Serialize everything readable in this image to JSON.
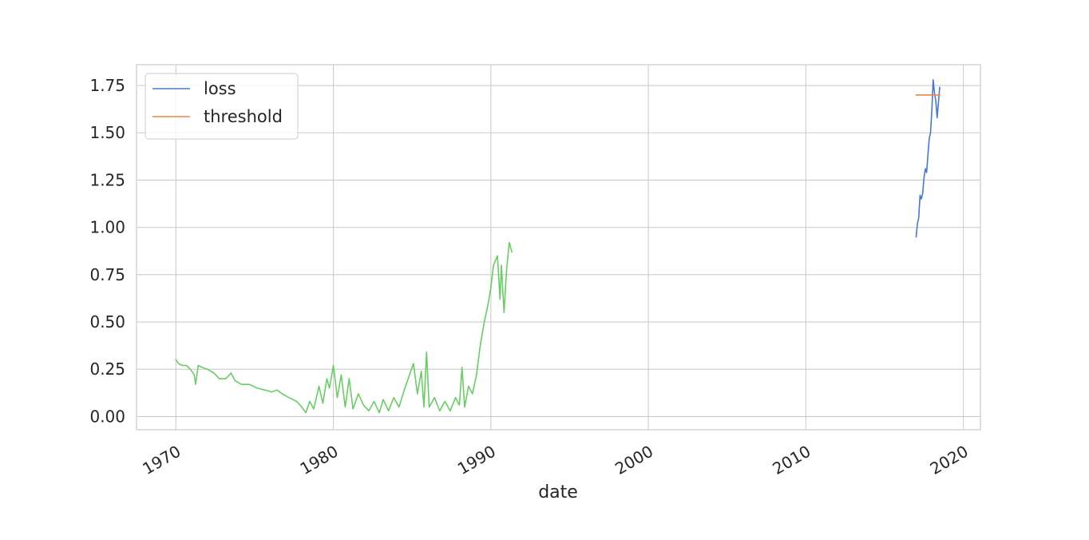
{
  "chart_data": {
    "type": "line",
    "title": "",
    "xlabel": "date",
    "ylabel": "",
    "x_axis_type": "date",
    "xlim": [
      "1967-07-01",
      "2021-02-01"
    ],
    "ylim": [
      -0.07,
      1.86
    ],
    "x_ticks": [
      "1970",
      "1980",
      "1990",
      "2000",
      "2010",
      "2020"
    ],
    "y_ticks": [
      "0.00",
      "0.25",
      "0.50",
      "0.75",
      "1.00",
      "1.25",
      "1.50",
      "1.75"
    ],
    "grid": true,
    "legend": {
      "position": "top-left",
      "entries": [
        "loss",
        "threshold"
      ]
    },
    "series": [
      {
        "name": "loss",
        "color": "#4878d0",
        "points": [
          [
            "2017-01",
            0.95
          ],
          [
            "2017-02",
            1.02
          ],
          [
            "2017-03",
            1.05
          ],
          [
            "2017-04",
            1.17
          ],
          [
            "2017-05",
            1.15
          ],
          [
            "2017-06",
            1.18
          ],
          [
            "2017-07",
            1.26
          ],
          [
            "2017-08",
            1.31
          ],
          [
            "2017-09",
            1.29
          ],
          [
            "2017-10",
            1.38
          ],
          [
            "2017-11",
            1.47
          ],
          [
            "2017-12",
            1.5
          ],
          [
            "2018-01",
            1.62
          ],
          [
            "2018-02",
            1.78
          ],
          [
            "2018-03",
            1.71
          ],
          [
            "2018-04",
            1.67
          ],
          [
            "2018-05",
            1.58
          ],
          [
            "2018-06",
            1.66
          ],
          [
            "2018-07",
            1.74
          ]
        ]
      },
      {
        "name": "threshold",
        "color": "#ee854a",
        "points": [
          [
            "2017-01",
            1.7
          ],
          [
            "2018-07",
            1.7
          ]
        ]
      },
      {
        "name": "",
        "color": "#6acc64",
        "points": [
          [
            "1970-01",
            0.3
          ],
          [
            "1970-03",
            0.28
          ],
          [
            "1970-06",
            0.27
          ],
          [
            "1970-09",
            0.27
          ],
          [
            "1970-12",
            0.25
          ],
          [
            "1971-03",
            0.22
          ],
          [
            "1971-04",
            0.17
          ],
          [
            "1971-06",
            0.27
          ],
          [
            "1971-09",
            0.26
          ],
          [
            "1972-01",
            0.25
          ],
          [
            "1972-06",
            0.23
          ],
          [
            "1972-10",
            0.2
          ],
          [
            "1973-03",
            0.2
          ],
          [
            "1973-07",
            0.23
          ],
          [
            "1973-10",
            0.19
          ],
          [
            "1974-03",
            0.17
          ],
          [
            "1974-09",
            0.17
          ],
          [
            "1975-03",
            0.15
          ],
          [
            "1975-09",
            0.14
          ],
          [
            "1976-02",
            0.13
          ],
          [
            "1976-06",
            0.14
          ],
          [
            "1976-10",
            0.12
          ],
          [
            "1977-03",
            0.1
          ],
          [
            "1977-09",
            0.08
          ],
          [
            "1978-01",
            0.05
          ],
          [
            "1978-04",
            0.02
          ],
          [
            "1978-07",
            0.08
          ],
          [
            "1978-10",
            0.04
          ],
          [
            "1979-02",
            0.16
          ],
          [
            "1979-05",
            0.07
          ],
          [
            "1979-08",
            0.2
          ],
          [
            "1979-10",
            0.15
          ],
          [
            "1980-01",
            0.27
          ],
          [
            "1980-04",
            0.1
          ],
          [
            "1980-07",
            0.22
          ],
          [
            "1980-10",
            0.05
          ],
          [
            "1981-01",
            0.2
          ],
          [
            "1981-04",
            0.04
          ],
          [
            "1981-08",
            0.12
          ],
          [
            "1981-12",
            0.06
          ],
          [
            "1982-04",
            0.03
          ],
          [
            "1982-08",
            0.08
          ],
          [
            "1982-12",
            0.02
          ],
          [
            "1983-03",
            0.09
          ],
          [
            "1983-07",
            0.03
          ],
          [
            "1983-11",
            0.1
          ],
          [
            "1984-03",
            0.05
          ],
          [
            "1984-07",
            0.14
          ],
          [
            "1984-11",
            0.22
          ],
          [
            "1985-02",
            0.28
          ],
          [
            "1985-05",
            0.12
          ],
          [
            "1985-08",
            0.24
          ],
          [
            "1985-10",
            0.05
          ],
          [
            "1985-12",
            0.34
          ],
          [
            "1986-02",
            0.05
          ],
          [
            "1986-06",
            0.1
          ],
          [
            "1986-10",
            0.03
          ],
          [
            "1987-02",
            0.08
          ],
          [
            "1987-06",
            0.03
          ],
          [
            "1987-10",
            0.1
          ],
          [
            "1988-01",
            0.06
          ],
          [
            "1988-03",
            0.26
          ],
          [
            "1988-05",
            0.05
          ],
          [
            "1988-08",
            0.16
          ],
          [
            "1988-11",
            0.12
          ],
          [
            "1989-02",
            0.22
          ],
          [
            "1989-05",
            0.38
          ],
          [
            "1989-08",
            0.5
          ],
          [
            "1989-11",
            0.6
          ],
          [
            "1990-01",
            0.68
          ],
          [
            "1990-03",
            0.8
          ],
          [
            "1990-06",
            0.85
          ],
          [
            "1990-08",
            0.62
          ],
          [
            "1990-09",
            0.8
          ],
          [
            "1990-11",
            0.55
          ],
          [
            "1991-01",
            0.78
          ],
          [
            "1991-03",
            0.92
          ],
          [
            "1991-05",
            0.87
          ]
        ]
      }
    ]
  }
}
